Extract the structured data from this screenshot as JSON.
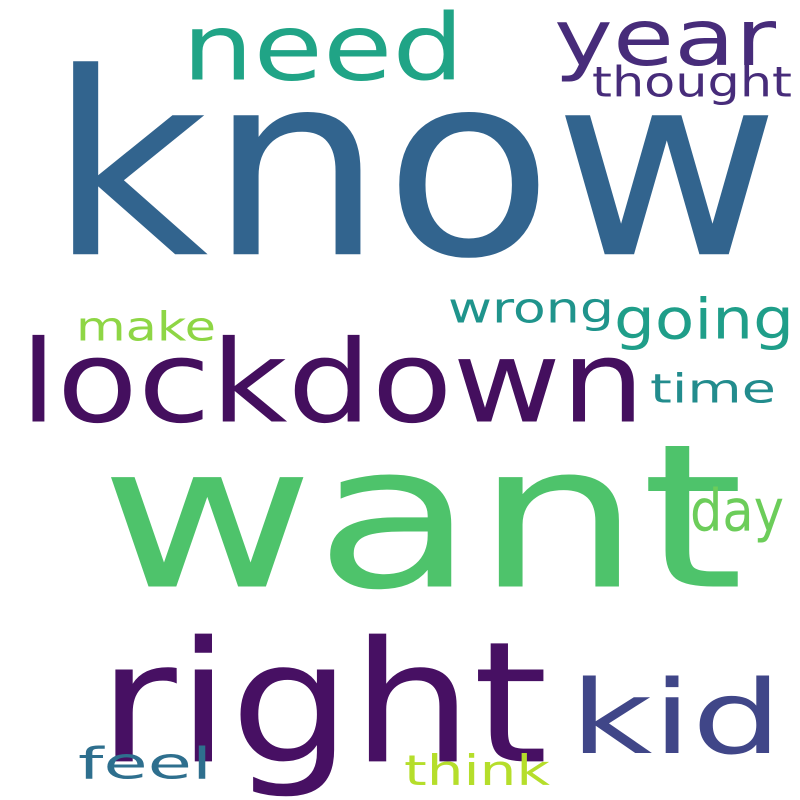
{
  "words": [
    {
      "text": "know",
      "color": "#32648e"
    },
    {
      "text": "want",
      "color": "#4ec36b"
    },
    {
      "text": "lockdown",
      "color": "#440f5e"
    },
    {
      "text": "right",
      "color": "#471063"
    },
    {
      "text": "kid",
      "color": "#404688"
    },
    {
      "text": "need",
      "color": "#20a486"
    },
    {
      "text": "year",
      "color": "#472c7a"
    },
    {
      "text": "thought",
      "color": "#472c7a"
    },
    {
      "text": "going",
      "color": "#1f9e89"
    },
    {
      "text": "wrong",
      "color": "#1f948c"
    },
    {
      "text": "make",
      "color": "#8ed645"
    },
    {
      "text": "time",
      "color": "#228c8d"
    },
    {
      "text": "day",
      "color": "#6ccd5a"
    },
    {
      "text": "feel",
      "color": "#2e6f8e"
    },
    {
      "text": "think",
      "color": "#b5de2b"
    }
  ]
}
